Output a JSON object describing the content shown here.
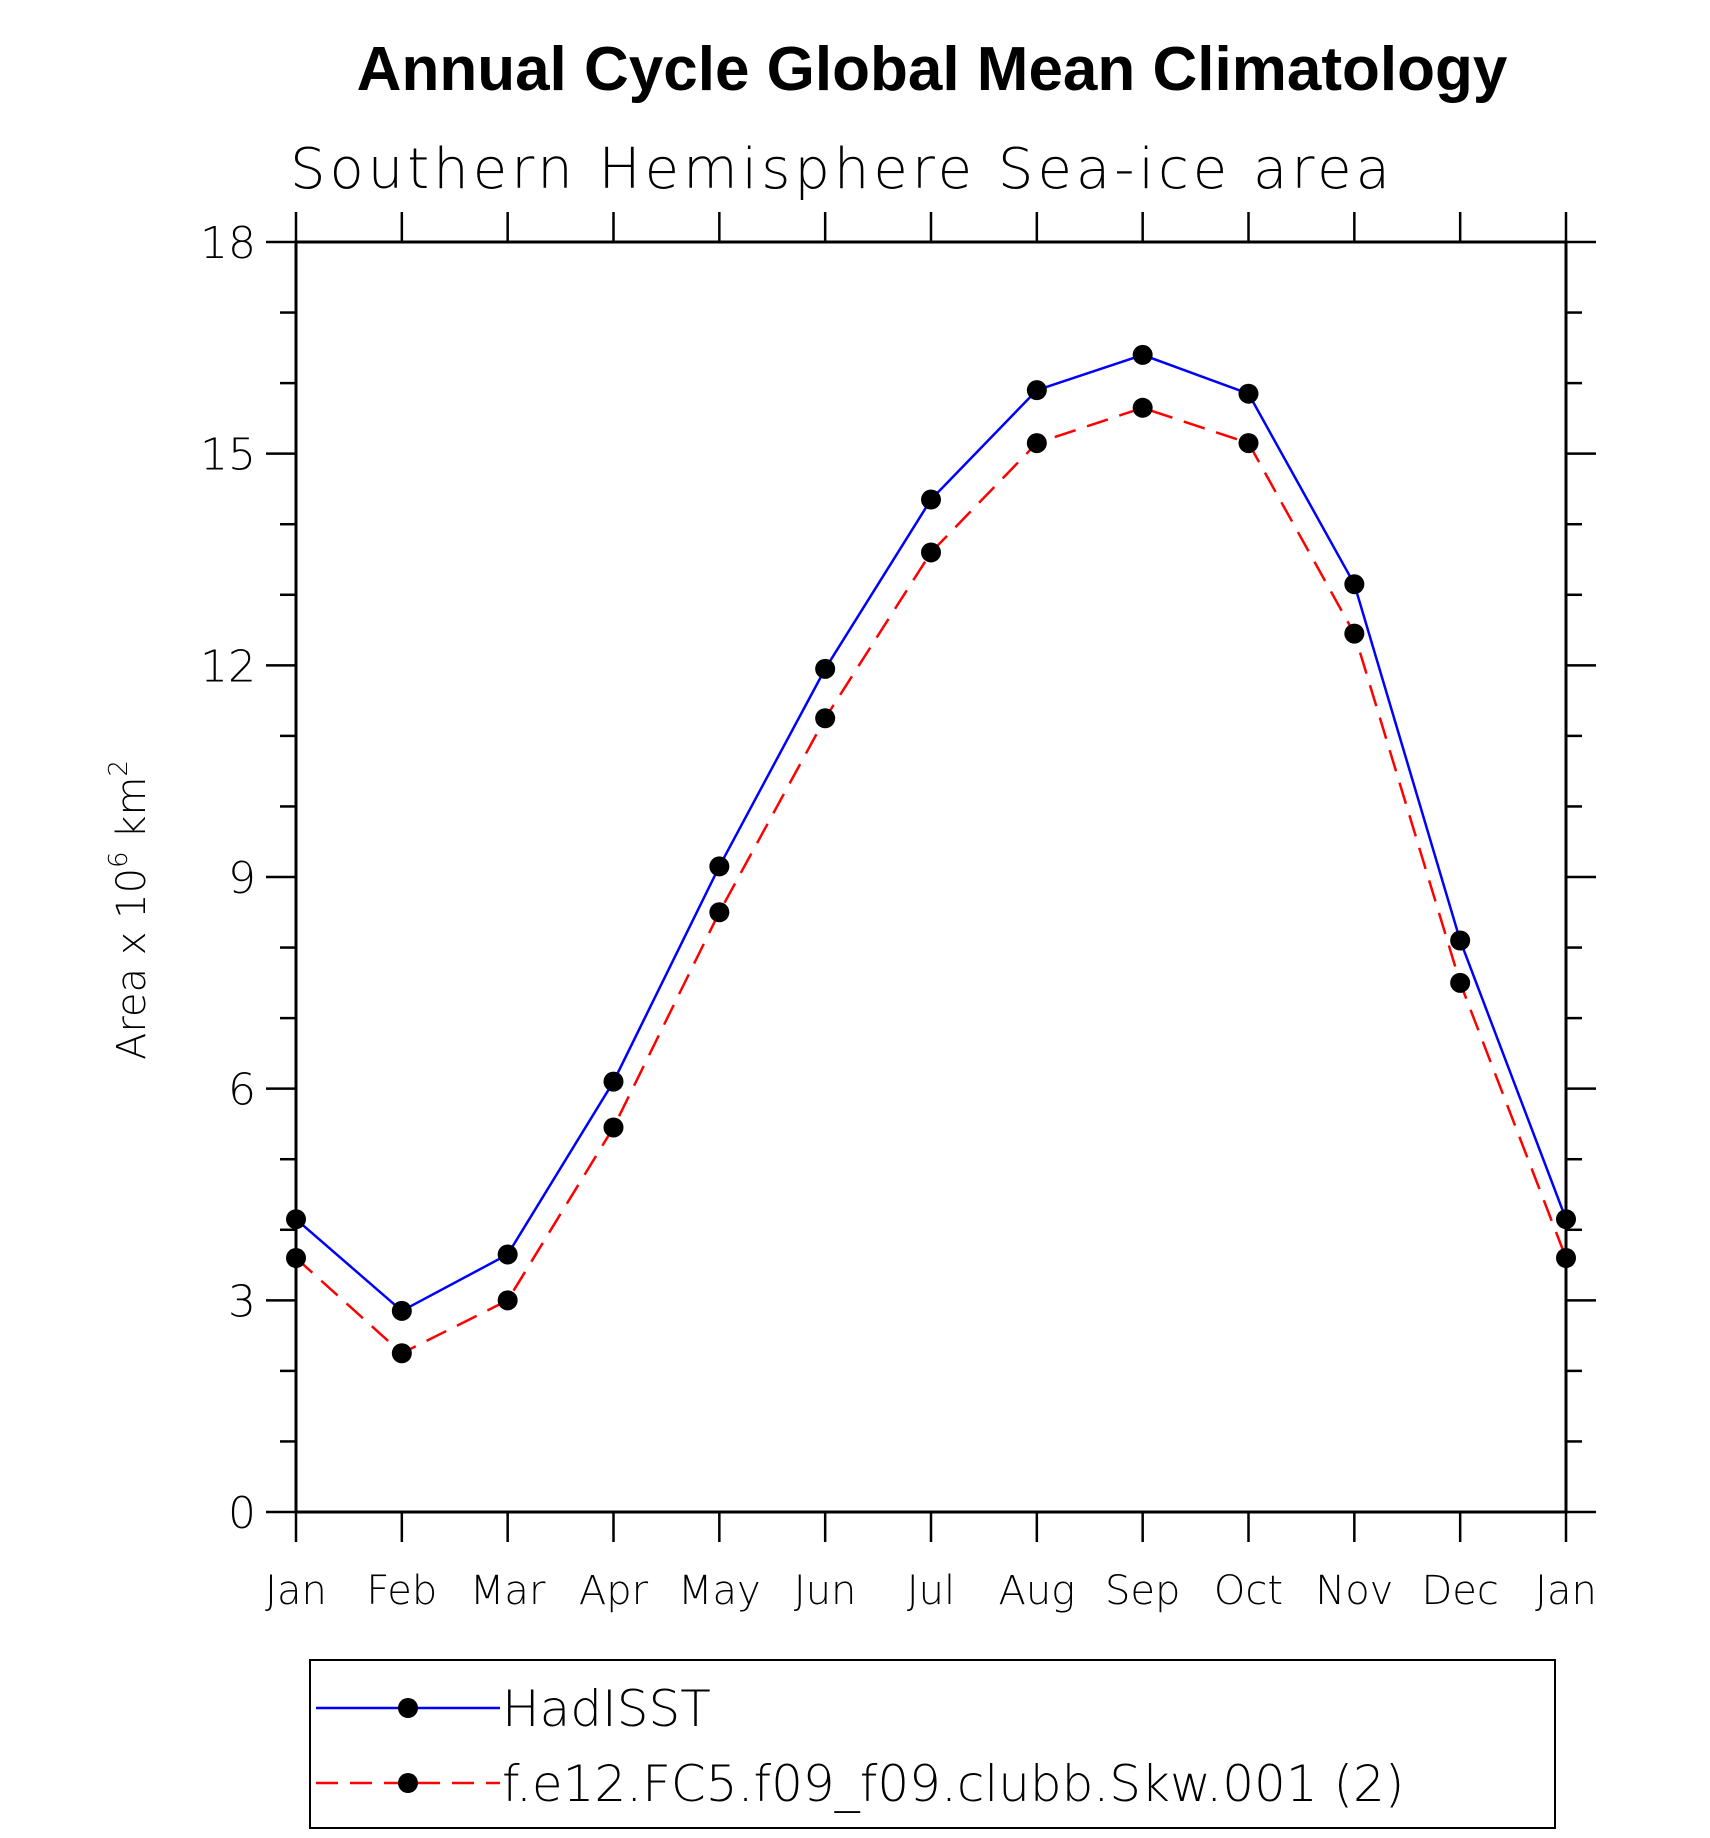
{
  "chart_data": {
    "type": "line",
    "title": "Annual Cycle Global Mean Climatology",
    "subtitle": "Southern Hemisphere Sea-ice area",
    "ylabel": "Area x 10^6 km^2",
    "ylabel_parts": {
      "base": "Area x 10",
      "exp1": "6",
      "mid": " km",
      "exp2": "2"
    },
    "ylim": [
      0,
      18
    ],
    "yticks": [
      0,
      3,
      6,
      9,
      12,
      15,
      18
    ],
    "yminor_step": 1,
    "categories": [
      "Jan",
      "Feb",
      "Mar",
      "Apr",
      "May",
      "Jun",
      "Jul",
      "Aug",
      "Sep",
      "Oct",
      "Nov",
      "Dec",
      "Jan"
    ],
    "series": [
      {
        "name": "HadISST",
        "color": "#0000ff",
        "dash": "solid",
        "values": [
          4.15,
          2.85,
          3.65,
          6.1,
          9.15,
          11.95,
          14.35,
          15.9,
          16.4,
          15.85,
          13.15,
          8.1,
          4.15
        ]
      },
      {
        "name": "f.e12.FC5.f09_f09.clubb.Skw.001 (2)",
        "color": "#ff0000",
        "dash": "dashed",
        "values": [
          3.6,
          2.25,
          3.0,
          5.45,
          8.5,
          11.25,
          13.6,
          15.15,
          15.65,
          15.15,
          12.45,
          7.5,
          3.6
        ]
      }
    ],
    "grid": false,
    "legend_position": "bottom"
  }
}
